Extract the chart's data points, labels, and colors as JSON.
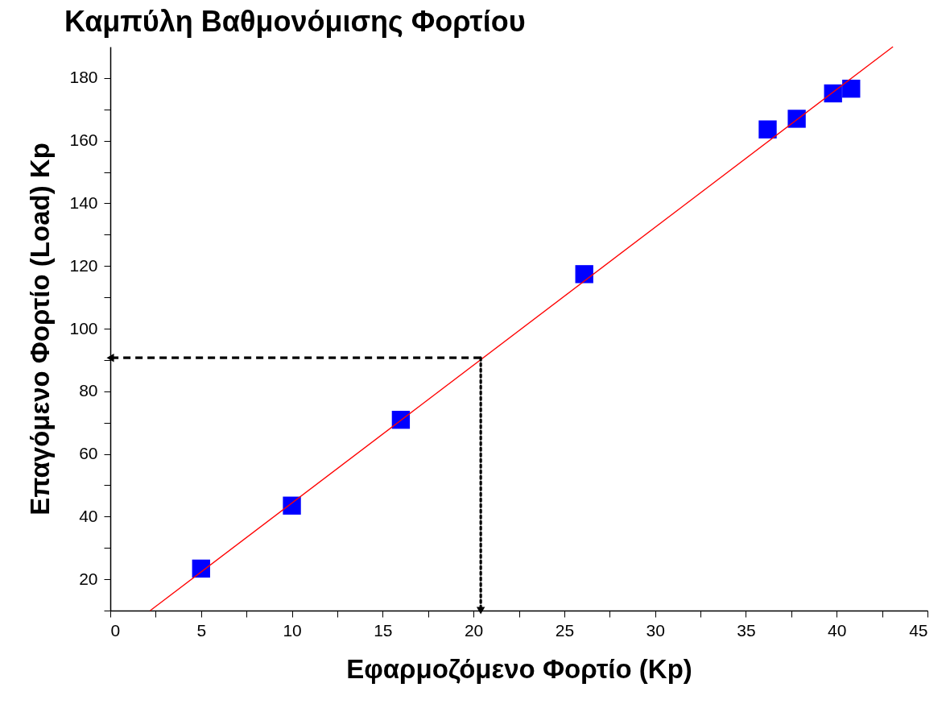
{
  "chart_data": {
    "type": "scatter",
    "title": "Καμπύλη Βαθμονόμισης Φορτίου",
    "xlabel": "Εφαρμοζόμενο Φορτίο (Kp)",
    "ylabel": "Επαγόμενο Φορτίο (Load) Kp",
    "x": [
      5,
      10,
      16,
      26.1,
      36.2,
      37.8,
      39.8,
      40.8
    ],
    "series": [
      {
        "color": "#0000ff",
        "marker": "square",
        "values": [
          23.4,
          43.5,
          70.9,
          117.4,
          163.6,
          167,
          175.1,
          176.6
        ]
      },
      {
        "type": "line",
        "color": "#ff0000",
        "line_style": "solid",
        "x": [
          2.2,
          43.1
        ],
        "values": [
          10,
          190
        ]
      },
      {
        "type": "line",
        "color": "#000000",
        "line_style": "dashed",
        "x": [
          20.4,
          0
        ],
        "values": [
          90.7,
          90.7
        ]
      },
      {
        "type": "line",
        "color": "#000000",
        "line_style": "dotted",
        "x": [
          20.4,
          20.4
        ],
        "values": [
          90.7,
          10
        ]
      }
    ],
    "xlim": [
      0,
      45
    ],
    "ylim": [
      10,
      190
    ],
    "xticks": [
      0,
      {
        "value": 2.5,
        "label": null
      },
      5,
      {
        "value": 7.5,
        "label": null
      },
      10,
      {
        "value": 12.5,
        "label": null
      },
      15,
      {
        "value": 17.5,
        "label": null
      },
      20,
      {
        "value": 22.5,
        "label": null
      },
      25,
      {
        "value": 27.5,
        "label": null
      },
      30,
      {
        "value": 32.5,
        "label": null
      },
      35,
      {
        "value": 37.5,
        "label": null
      },
      40,
      {
        "value": 42.5,
        "label": null
      },
      45
    ],
    "yticks": [
      {
        "value": 10,
        "label": null
      },
      20,
      {
        "value": 30,
        "label": null
      },
      40,
      {
        "value": 50,
        "label": null
      },
      60,
      {
        "value": 70,
        "label": null
      },
      80,
      {
        "value": 90,
        "label": null
      },
      100,
      {
        "value": 110,
        "label": null
      },
      120,
      {
        "value": 130,
        "label": null
      },
      140,
      {
        "value": 150,
        "label": null
      },
      160,
      {
        "value": 170,
        "label": null
      },
      180
    ],
    "grid": false
  }
}
